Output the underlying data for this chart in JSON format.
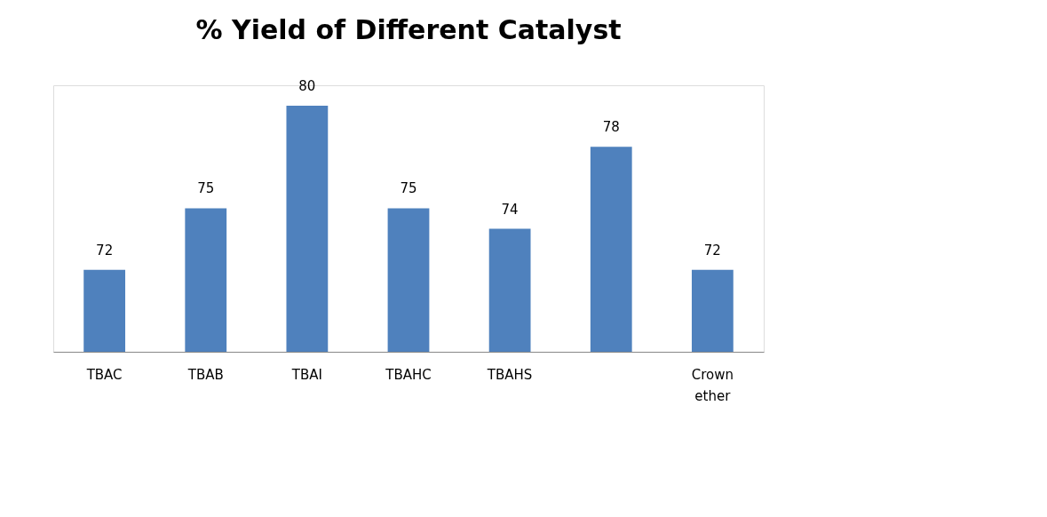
{
  "chart_data": {
    "type": "bar",
    "title": "% Yield of Different Catalyst",
    "categories": [
      "TBAC",
      "TBAB",
      "TBAI",
      "TBAHC",
      "TBAHS",
      null,
      "Crown ether"
    ],
    "values": [
      72,
      75,
      80,
      75,
      74,
      78,
      72
    ],
    "color": "#4f81bd",
    "ylim": [
      68,
      81
    ],
    "data_labels": true,
    "tick_labels": "x"
  }
}
